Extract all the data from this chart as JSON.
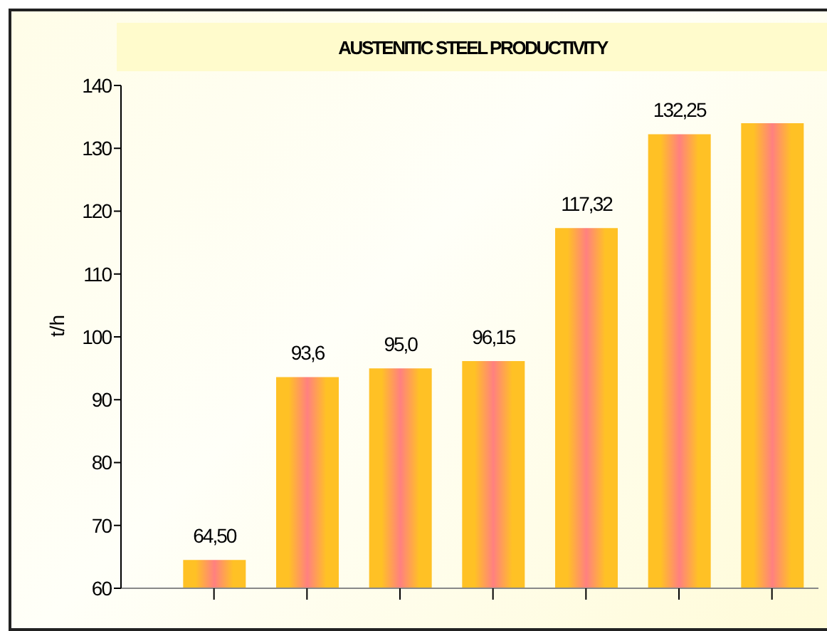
{
  "chart_data": {
    "type": "bar",
    "title": "AUSTENITIC STEEL PRODUCTIVITY",
    "ylabel": "t/h",
    "categories": [
      null,
      null,
      null,
      null,
      null,
      null,
      null
    ],
    "values": [
      64.5,
      93.6,
      95.0,
      96.15,
      117.32,
      132.25,
      134
    ],
    "value_labels": [
      "64,50",
      "93,6",
      "95,0",
      "96,15",
      "117,32",
      "132,25",
      null
    ],
    "color": "#ffc125",
    "ylim": [
      60,
      140
    ],
    "yticks": [
      60,
      70,
      80,
      90,
      100,
      110,
      120,
      130,
      140
    ]
  }
}
